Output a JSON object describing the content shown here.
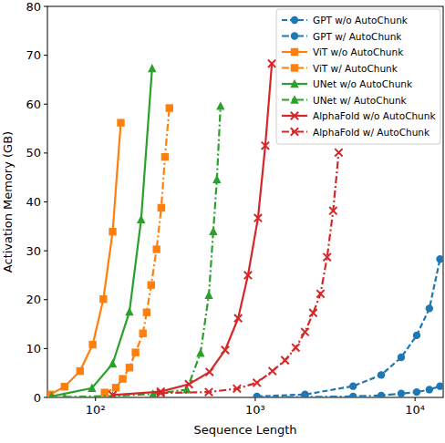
{
  "chart_data": {
    "type": "line",
    "x_label": "Sequence Length",
    "y_label": "Activation Memory (GB)",
    "log": "x",
    "legend": "upper right",
    "xlim": [
      50,
      15000
    ],
    "ylim": [
      0,
      80
    ],
    "xticks": [
      {
        "value": 100,
        "label": "10²"
      },
      {
        "value": 1000,
        "label": "10³"
      },
      {
        "value": 10000,
        "label": "10⁴"
      }
    ],
    "yticks": [
      0,
      10,
      20,
      30,
      40,
      50,
      60,
      70,
      80
    ],
    "series": [
      {
        "name": "GPT w/o AutoChunk",
        "color": "#1f77b4",
        "marker": "circle",
        "line_style": "dashed",
        "x": [
          1024,
          2048,
          4096,
          6144,
          8192,
          10240,
          12288,
          14336
        ],
        "values": [
          0.2,
          0.6,
          2.3,
          4.6,
          8.2,
          12.7,
          18.2,
          28.3
        ]
      },
      {
        "name": "GPT w/ AutoChunk",
        "color": "#1f77b4",
        "marker": "circle",
        "line_style": "dashdot",
        "x": [
          1024,
          2048,
          4096,
          6144,
          8192,
          10240,
          12288,
          14336
        ],
        "values": [
          0.05,
          0.1,
          0.2,
          0.4,
          0.8,
          1.1,
          1.6,
          2.3
        ]
      },
      {
        "name": "ViT w/o AutoChunk",
        "color": "#ff7f0e",
        "marker": "square",
        "line_style": "solid",
        "x": [
          52,
          64,
          80,
          96,
          112,
          128,
          144
        ],
        "values": [
          0.6,
          2.2,
          5.4,
          10.8,
          20.1,
          33.9,
          56.2
        ]
      },
      {
        "name": "ViT w/ AutoChunk",
        "color": "#ff7f0e",
        "marker": "square",
        "line_style": "dashdot",
        "x": [
          114,
          134,
          148,
          163,
          178,
          198,
          209,
          223,
          241,
          258,
          272,
          290
        ],
        "values": [
          1.0,
          2.0,
          3.8,
          6.1,
          9.2,
          13.1,
          17.4,
          23.0,
          30.3,
          38.8,
          49.2,
          59.2
        ]
      },
      {
        "name": "UNet w/o AutoChunk",
        "color": "#2ca02c",
        "marker": "triangle",
        "line_style": "solid",
        "x": [
          53,
          95,
          128,
          163,
          193,
          226
        ],
        "values": [
          0.2,
          1.9,
          6.9,
          17.5,
          36.4,
          67.3
        ]
      },
      {
        "name": "UNet w/ AutoChunk",
        "color": "#2ca02c",
        "marker": "triangle",
        "line_style": "dashdot",
        "x": [
          64,
          128,
          229,
          373,
          454,
          512,
          546,
          575,
          606
        ],
        "values": [
          0.1,
          0.3,
          0.7,
          1.6,
          9.1,
          20.9,
          34.0,
          44.6,
          59.6
        ]
      },
      {
        "name": "AlphaFold w/o AutoChunk",
        "color": "#d62728",
        "marker": "x",
        "line_style": "solid",
        "x": [
          128,
          256,
          384,
          517,
          648,
          781,
          900,
          1040,
          1155,
          1270
        ],
        "values": [
          0.5,
          1.2,
          2.7,
          5.2,
          9.7,
          16.2,
          25.0,
          36.7,
          51.5,
          68.3
        ]
      },
      {
        "name": "AlphaFold w/ AutoChunk",
        "color": "#d62728",
        "marker": "x",
        "line_style": "dashdot",
        "x": [
          256,
          512,
          768,
          1024,
          1280,
          1536,
          1792,
          2048,
          2304,
          2560,
          2816,
          3072,
          3328
        ],
        "values": [
          0.9,
          1.1,
          1.8,
          3.0,
          5.4,
          7.6,
          10.2,
          13.4,
          17.3,
          21.2,
          28.7,
          38.2,
          50.1
        ]
      }
    ]
  }
}
